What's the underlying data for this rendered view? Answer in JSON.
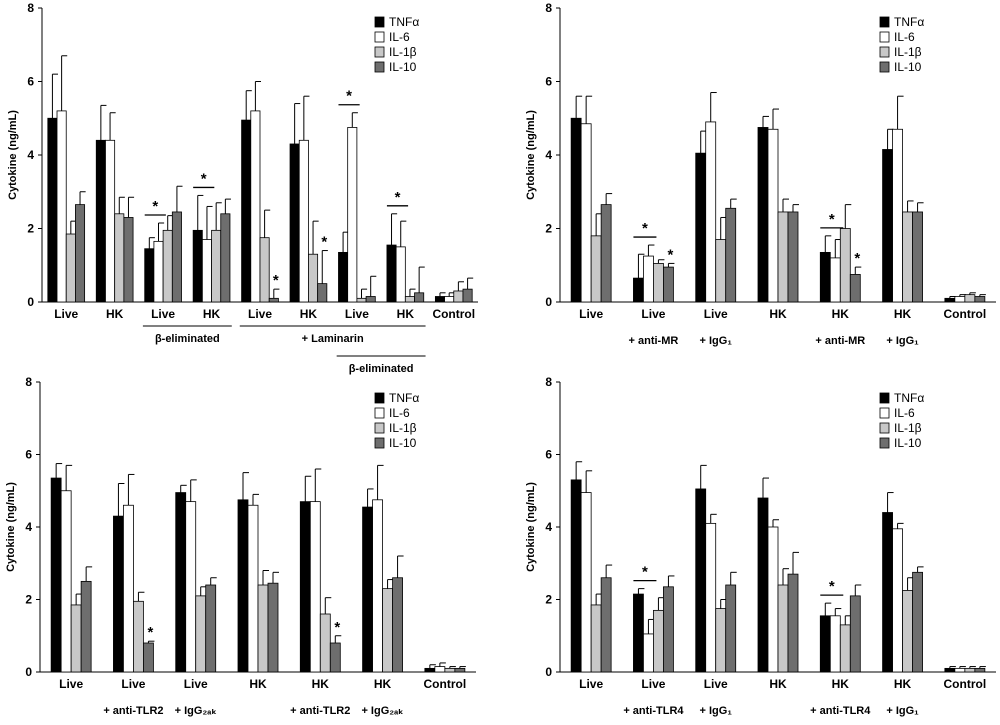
{
  "colors": {
    "series": [
      "#000000",
      "#ffffff",
      "#c8c8c8",
      "#6e6e6e"
    ],
    "axis": "#000000"
  },
  "chart_data": [
    {
      "type": "bar",
      "title": "",
      "ylabel": "Cytokine (ng/mL)",
      "xlabel": "",
      "ylim": [
        0,
        8
      ],
      "yticks": [
        0,
        2,
        4,
        6,
        8
      ],
      "legend_position": "top-right",
      "categories": [
        "Live",
        "HK",
        "Live",
        "HK",
        "Live",
        "HK",
        "Live",
        "HK",
        "Control"
      ],
      "series": [
        {
          "name": "TNFα",
          "values": [
            5.0,
            4.4,
            1.45,
            1.95,
            4.95,
            4.3,
            1.35,
            1.55,
            0.15
          ],
          "errors": [
            1.2,
            0.95,
            0.3,
            0.95,
            0.8,
            1.1,
            0.55,
            0.85,
            0.1
          ],
          "stars": [
            false,
            false,
            false,
            false,
            false,
            false,
            false,
            false,
            false
          ]
        },
        {
          "name": "IL-6",
          "values": [
            5.2,
            4.4,
            1.65,
            1.7,
            5.2,
            4.4,
            4.75,
            1.5,
            0.15
          ],
          "errors": [
            1.5,
            0.75,
            0.5,
            0.9,
            0.8,
            1.2,
            0.4,
            0.7,
            0.1
          ],
          "stars": [
            false,
            false,
            false,
            false,
            false,
            false,
            false,
            false,
            false
          ]
        },
        {
          "name": "IL-1β",
          "values": [
            1.85,
            2.4,
            1.95,
            1.95,
            1.75,
            1.3,
            0.1,
            0.15,
            0.3
          ],
          "errors": [
            0.35,
            0.45,
            0.4,
            0.75,
            0.75,
            0.9,
            0.25,
            0.2,
            0.25
          ],
          "stars": [
            false,
            false,
            false,
            false,
            false,
            false,
            false,
            false,
            false
          ]
        },
        {
          "name": "IL-10",
          "values": [
            2.65,
            2.3,
            2.45,
            2.4,
            0.1,
            0.5,
            0.15,
            0.25,
            0.35
          ],
          "errors": [
            0.35,
            0.55,
            0.7,
            0.4,
            0.25,
            0.9,
            0.55,
            0.7,
            0.3
          ],
          "stars": [
            false,
            false,
            false,
            false,
            true,
            true,
            false,
            false,
            false
          ]
        }
      ],
      "annotations": [
        {
          "type": "sig_line",
          "groups": [
            2,
            2
          ],
          "text": "*"
        },
        {
          "type": "sig_line",
          "groups": [
            3,
            3
          ],
          "text": "*"
        },
        {
          "type": "sig_line",
          "groups": [
            6,
            6
          ],
          "text": "*"
        },
        {
          "type": "sig_line",
          "groups": [
            7,
            7
          ],
          "text": "*"
        }
      ],
      "group_labels": [
        {
          "from": 2,
          "to": 3,
          "text": "β-eliminated",
          "row": 0
        },
        {
          "from": 4,
          "to": 7,
          "text": "+ Laminarin",
          "row": 0
        },
        {
          "from": 6,
          "to": 7,
          "text": "β-eliminated",
          "row": 1
        }
      ]
    },
    {
      "type": "bar",
      "title": "",
      "ylabel": "Cytokine (ng/mL)",
      "xlabel": "",
      "ylim": [
        0,
        8
      ],
      "yticks": [
        0,
        2,
        4,
        6,
        8
      ],
      "legend_position": "top-right",
      "categories": [
        "Live",
        "Live",
        "Live",
        "HK",
        "HK",
        "HK",
        "Control"
      ],
      "sublabels": [
        "",
        "+ anti-MR",
        "+ IgG₁",
        "",
        "+ anti-MR",
        "+ IgG₁",
        ""
      ],
      "series": [
        {
          "name": "TNFα",
          "values": [
            5.0,
            0.65,
            4.05,
            4.75,
            1.35,
            4.15,
            0.1
          ],
          "errors": [
            0.6,
            0.65,
            0.6,
            0.3,
            0.45,
            0.55,
            0.05
          ],
          "stars": [
            false,
            false,
            false,
            false,
            false,
            false,
            false
          ]
        },
        {
          "name": "IL-6",
          "values": [
            4.85,
            1.25,
            4.9,
            4.7,
            1.2,
            4.7,
            0.15
          ],
          "errors": [
            0.75,
            0.3,
            0.8,
            0.55,
            0.5,
            0.9,
            0.05
          ],
          "stars": [
            false,
            false,
            false,
            false,
            false,
            false,
            false
          ]
        },
        {
          "name": "IL-1β",
          "values": [
            1.8,
            1.05,
            1.7,
            2.45,
            2.0,
            2.45,
            0.2
          ],
          "errors": [
            0.6,
            0.1,
            0.6,
            0.35,
            0.65,
            0.3,
            0.05
          ],
          "stars": [
            false,
            false,
            false,
            false,
            false,
            false,
            false
          ]
        },
        {
          "name": "IL-10",
          "values": [
            2.65,
            0.95,
            2.55,
            2.45,
            0.75,
            2.45,
            0.15
          ],
          "errors": [
            0.3,
            0.1,
            0.25,
            0.2,
            0.2,
            0.25,
            0.05
          ],
          "stars": [
            false,
            true,
            false,
            false,
            true,
            false,
            false
          ]
        }
      ],
      "annotations": [
        {
          "type": "sig_line",
          "groups": [
            1,
            1
          ],
          "text": "*"
        },
        {
          "type": "sig_line",
          "groups": [
            4,
            4
          ],
          "text": "*"
        }
      ],
      "group_labels": []
    },
    {
      "type": "bar",
      "title": "",
      "ylabel": "Cytokine (ng/mL)",
      "xlabel": "",
      "ylim": [
        0,
        8
      ],
      "yticks": [
        0,
        2,
        4,
        6,
        8
      ],
      "legend_position": "top-right",
      "categories": [
        "Live",
        "Live",
        "Live",
        "HK",
        "HK",
        "HK",
        "Control"
      ],
      "sublabels": [
        "",
        "+ anti-TLR2",
        "+ IgG₂ₐₖ",
        "",
        "+ anti-TLR2",
        "+ IgG₂ₐₖ",
        ""
      ],
      "series": [
        {
          "name": "TNFα",
          "values": [
            5.35,
            4.3,
            4.95,
            4.75,
            4.7,
            4.55,
            0.1
          ],
          "errors": [
            0.4,
            0.9,
            0.2,
            0.75,
            0.7,
            0.5,
            0.1
          ],
          "stars": [
            false,
            false,
            false,
            false,
            false,
            false,
            false
          ]
        },
        {
          "name": "IL-6",
          "values": [
            5.0,
            4.6,
            4.7,
            4.6,
            4.7,
            4.75,
            0.15
          ],
          "errors": [
            0.7,
            0.85,
            0.6,
            0.3,
            0.9,
            0.95,
            0.1
          ],
          "stars": [
            false,
            false,
            false,
            false,
            false,
            false,
            false
          ]
        },
        {
          "name": "IL-1β",
          "values": [
            1.85,
            1.95,
            2.1,
            2.4,
            1.6,
            2.3,
            0.1
          ],
          "errors": [
            0.3,
            0.25,
            0.25,
            0.4,
            0.45,
            0.25,
            0.05
          ],
          "stars": [
            false,
            false,
            false,
            false,
            false,
            false,
            false
          ]
        },
        {
          "name": "IL-10",
          "values": [
            2.5,
            0.8,
            2.4,
            2.45,
            0.8,
            2.6,
            0.1
          ],
          "errors": [
            0.4,
            0.05,
            0.2,
            0.3,
            0.2,
            0.6,
            0.05
          ],
          "stars": [
            false,
            true,
            false,
            false,
            true,
            false,
            false
          ]
        }
      ],
      "annotations": [],
      "group_labels": []
    },
    {
      "type": "bar",
      "title": "",
      "ylabel": "Cytokine (ng/mL)",
      "xlabel": "",
      "ylim": [
        0,
        8
      ],
      "yticks": [
        0,
        2,
        4,
        6,
        8
      ],
      "legend_position": "top-right",
      "categories": [
        "Live",
        "Live",
        "Live",
        "HK",
        "HK",
        "HK",
        "Control"
      ],
      "sublabels": [
        "",
        "+ anti-TLR4",
        "+ IgG₁",
        "",
        "+ anti-TLR4",
        "+ IgG₁",
        ""
      ],
      "series": [
        {
          "name": "TNFα",
          "values": [
            5.3,
            2.15,
            5.05,
            4.8,
            1.55,
            4.4,
            0.1
          ],
          "errors": [
            0.5,
            0.15,
            0.65,
            0.55,
            0.35,
            0.55,
            0.05
          ],
          "stars": [
            false,
            false,
            false,
            false,
            false,
            false,
            false
          ]
        },
        {
          "name": "IL-6",
          "values": [
            4.95,
            1.05,
            4.1,
            4.0,
            1.55,
            3.95,
            0.1
          ],
          "errors": [
            0.6,
            0.4,
            0.25,
            0.2,
            0.2,
            0.15,
            0.05
          ],
          "stars": [
            false,
            false,
            false,
            false,
            false,
            false,
            false
          ]
        },
        {
          "name": "IL-1β",
          "values": [
            1.85,
            1.7,
            1.75,
            2.4,
            1.3,
            2.25,
            0.1
          ],
          "errors": [
            0.3,
            0.35,
            0.25,
            0.45,
            0.25,
            0.35,
            0.05
          ],
          "stars": [
            false,
            false,
            false,
            false,
            false,
            false,
            false
          ]
        },
        {
          "name": "IL-10",
          "values": [
            2.6,
            2.35,
            2.4,
            2.7,
            2.1,
            2.75,
            0.1
          ],
          "errors": [
            0.35,
            0.3,
            0.35,
            0.6,
            0.3,
            0.15,
            0.05
          ],
          "stars": [
            false,
            false,
            false,
            false,
            false,
            false,
            false
          ]
        }
      ],
      "annotations": [
        {
          "type": "sig_line",
          "groups": [
            1,
            1
          ],
          "text": "*"
        },
        {
          "type": "sig_line",
          "groups": [
            4,
            4
          ],
          "text": "*"
        }
      ],
      "group_labels": []
    }
  ]
}
